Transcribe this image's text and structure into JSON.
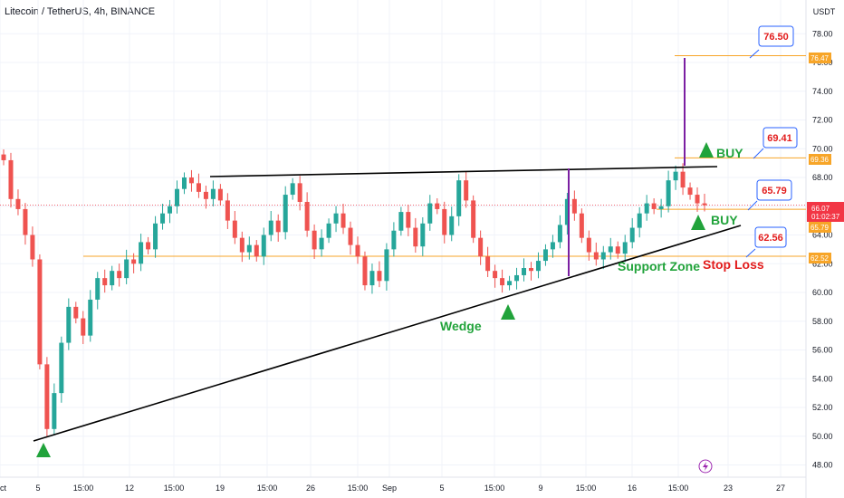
{
  "header": {
    "title": "Litecoin / TetherUS, 4h, BINANCE"
  },
  "axis": {
    "currency": "USDT"
  },
  "chart_data": {
    "type": "candlestick",
    "title": "Litecoin / TetherUS, 4h, BINANCE",
    "ylim": [
      47.5,
      80
    ],
    "y_ticks": [
      "48.00",
      "50.00",
      "52.00",
      "54.00",
      "56.00",
      "58.00",
      "60.00",
      "62.00",
      "64.00",
      "66.00",
      "68.00",
      "70.00",
      "72.00",
      "74.00",
      "76.00",
      "78.00"
    ],
    "x_ticks": [
      "5",
      "15:00",
      "12",
      "15:00",
      "19",
      "15:00",
      "26",
      "15:00",
      "Sep",
      "5",
      "15:00",
      "9",
      "15:00",
      "16",
      "15:00",
      "23",
      "27",
      "Oct"
    ],
    "close_series": [
      69.2,
      66.5,
      65.8,
      64.0,
      62.3,
      55.0,
      50.5,
      53.0,
      56.5,
      59.0,
      58.2,
      57.0,
      59.5,
      61.0,
      60.5,
      61.5,
      61.0,
      62.3,
      62.0,
      63.5,
      63.0,
      64.8,
      65.5,
      66.0,
      67.2,
      68.0,
      67.6,
      67.0,
      66.5,
      67.2,
      66.4,
      65.0,
      63.8,
      62.8,
      63.3,
      62.5,
      64.0,
      65.0,
      64.2,
      66.8,
      67.6,
      66.3,
      64.3,
      63.0,
      63.8,
      64.8,
      65.5,
      64.5,
      63.3,
      62.5,
      60.5,
      61.5,
      60.8,
      63.0,
      64.3,
      65.6,
      64.5,
      63.2,
      64.8,
      66.2,
      65.8,
      64.0,
      65.3,
      67.8,
      66.4,
      63.8,
      62.5,
      61.5,
      61.0,
      60.5,
      60.8,
      61.2,
      61.7,
      61.5,
      62.2,
      63.0,
      63.5,
      64.7,
      66.5,
      65.5,
      63.8,
      62.8,
      62.3,
      62.8,
      63.2,
      62.7,
      63.5,
      64.5,
      65.5,
      66.2,
      65.8,
      66.0,
      67.8,
      68.4,
      67.3,
      66.8,
      66.2,
      66.07
    ],
    "horizontal_levels": [
      {
        "label": "76.47",
        "value": 76.47,
        "color": "#f7a528"
      },
      {
        "label": "69.36",
        "value": 69.36,
        "color": "#f7a528"
      },
      {
        "label": "65.79",
        "value": 65.79,
        "color": "#f7a528"
      },
      {
        "label": "62.52",
        "value": 62.52,
        "color": "#f7a528"
      }
    ],
    "current_price": {
      "label": "66.07",
      "timer": "01:02:37",
      "value": 66.07
    },
    "callouts": [
      {
        "text": "76.50",
        "value": 76.5
      },
      {
        "text": "69.41",
        "value": 69.41
      },
      {
        "text": "65.79",
        "value": 65.79
      },
      {
        "text": "62.56",
        "value": 62.56
      }
    ],
    "annotations": [
      "BUY",
      "BUY",
      "Wedge",
      "Support Zone",
      "Stop Loss"
    ]
  },
  "colors": {
    "up": "#26a69a",
    "down": "#ef5350",
    "level": "#f7a528",
    "purple": "#7b1fa2",
    "green_text": "#21a33b",
    "red_text": "#e21c1c",
    "callout_border": "#2962ff",
    "price_tag": "#f23645"
  },
  "icons": {
    "lightning": "lightning-icon"
  }
}
